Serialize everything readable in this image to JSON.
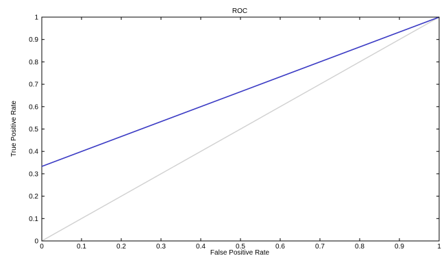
{
  "chart_data": {
    "type": "line",
    "title": "ROC",
    "xlabel": "False Positive Rate",
    "ylabel": "True Positive Rate",
    "xlim": [
      0,
      1
    ],
    "ylim": [
      0,
      1
    ],
    "x_ticks": [
      0,
      0.1,
      0.2,
      0.3,
      0.4,
      0.5,
      0.6,
      0.7,
      0.8,
      0.9,
      1
    ],
    "y_ticks": [
      0,
      0.1,
      0.2,
      0.3,
      0.4,
      0.5,
      0.6,
      0.7,
      0.8,
      0.9,
      1
    ],
    "x_tick_labels": [
      "0",
      "0.1",
      "0.2",
      "0.3",
      "0.4",
      "0.5",
      "0.6",
      "0.7",
      "0.8",
      "0.9",
      "1"
    ],
    "y_tick_labels": [
      "0",
      "0.1",
      "0.2",
      "0.3",
      "0.4",
      "0.5",
      "0.6",
      "0.7",
      "0.8",
      "0.9",
      "1"
    ],
    "grid": false,
    "legend": "none",
    "series": [
      {
        "x": [
          0,
          1
        ],
        "y": [
          0.333,
          1
        ],
        "color": "#3b3bc4"
      },
      {
        "x": [
          0,
          1
        ],
        "y": [
          0,
          1
        ],
        "color": "#d0d0d0"
      }
    ]
  }
}
